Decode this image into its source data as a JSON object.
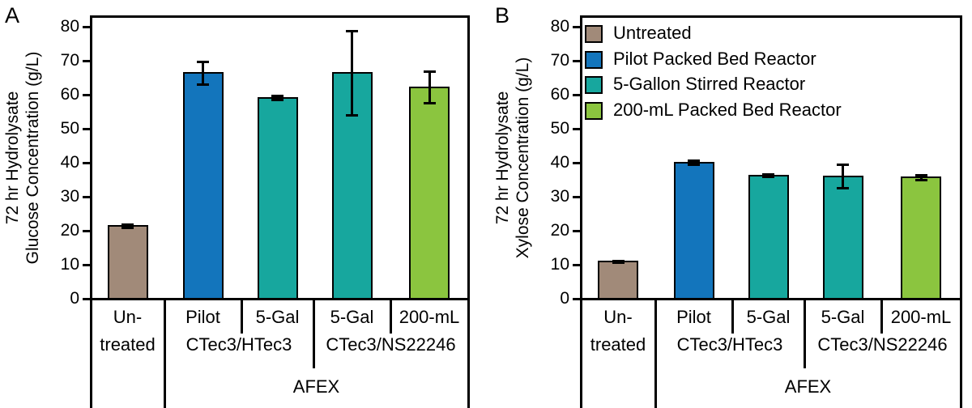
{
  "figure": {
    "background": "#ffffff",
    "stroke_color": "#000000"
  },
  "palette": {
    "untreated": "#A18A79",
    "pilot_packed_bed": "#1375BC",
    "five_gallon_stirred": "#17A79E",
    "two_hundred_ml_packed_bed": "#8BC53F"
  },
  "chart_data": [
    {
      "type": "bar",
      "panel_label": "A",
      "ylabel_lines": [
        "72 hr Hydrolysate",
        "Glucose Concentration (g/L)"
      ],
      "ylim": [
        0,
        80
      ],
      "ytick_step": 10,
      "grid": false,
      "legend_position": "none",
      "categories": [
        "Un-",
        "Pilot",
        "5-Gal",
        "5-Gal",
        "200-mL"
      ],
      "category_sublabels": [
        "treated",
        "",
        "",
        "",
        ""
      ],
      "values": [
        21.4,
        66.3,
        59.0,
        66.3,
        62.2
      ],
      "errors": [
        0.5,
        3.4,
        0.6,
        12.4,
        4.6
      ],
      "bar_color_keys": [
        "untreated",
        "pilot_packed_bed",
        "five_gallon_stirred",
        "five_gallon_stirred",
        "two_hundred_ml_packed_bed"
      ],
      "group_labels": [
        {
          "label": "CTec3/HTec3",
          "span": [
            1,
            2
          ]
        },
        {
          "label": "CTec3/NS22246",
          "span": [
            3,
            4
          ]
        }
      ],
      "super_group": {
        "label": "AFEX",
        "span": [
          1,
          4
        ]
      }
    },
    {
      "type": "bar",
      "panel_label": "B",
      "ylabel_lines": [
        "72 hr Hydrolysate",
        "Xylose Concentration (g/L)"
      ],
      "ylim": [
        0,
        80
      ],
      "ytick_step": 10,
      "grid": false,
      "legend_position": "upper-left",
      "categories": [
        "Un-",
        "Pilot",
        "5-Gal",
        "5-Gal",
        "200-mL"
      ],
      "category_sublabels": [
        "treated",
        "",
        "",
        "",
        ""
      ],
      "values": [
        10.8,
        40.0,
        36.2,
        36.0,
        35.6
      ],
      "errors": [
        0.3,
        0.5,
        0.3,
        3.5,
        0.8
      ],
      "bar_color_keys": [
        "untreated",
        "pilot_packed_bed",
        "five_gallon_stirred",
        "five_gallon_stirred",
        "two_hundred_ml_packed_bed"
      ],
      "group_labels": [
        {
          "label": "CTec3/HTec3",
          "span": [
            1,
            2
          ]
        },
        {
          "label": "CTec3/NS22246",
          "span": [
            3,
            4
          ]
        }
      ],
      "super_group": {
        "label": "AFEX",
        "span": [
          1,
          4
        ]
      },
      "legend": {
        "entries": [
          {
            "label": "Untreated",
            "color_key": "untreated"
          },
          {
            "label": "Pilot Packed Bed Reactor",
            "color_key": "pilot_packed_bed"
          },
          {
            "label": "5-Gallon Stirred Reactor",
            "color_key": "five_gallon_stirred"
          },
          {
            "label": "200-mL Packed Bed Reactor",
            "color_key": "two_hundred_ml_packed_bed"
          }
        ]
      }
    }
  ]
}
